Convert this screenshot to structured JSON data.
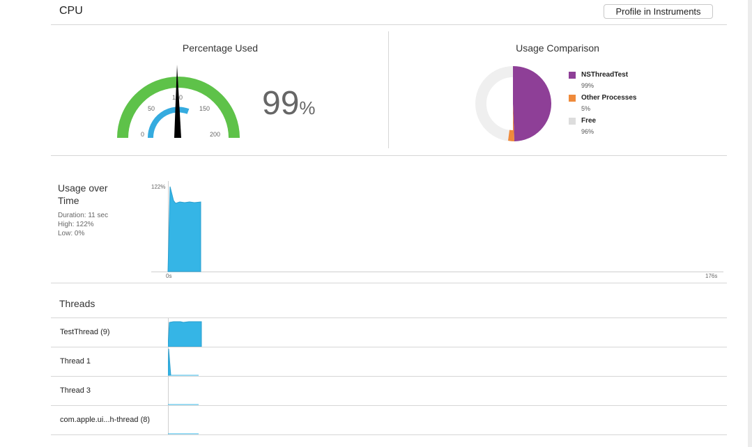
{
  "header": {
    "title": "CPU",
    "profile_button": "Profile in Instruments"
  },
  "gauge": {
    "title": "Percentage Used",
    "ticks": [
      "0",
      "50",
      "100",
      "150",
      "200"
    ],
    "value": "99",
    "unit": "%",
    "value_fraction": 0.495,
    "colors": {
      "outer": "#5ec249",
      "inner": "#35abdf",
      "needle": "#000000"
    }
  },
  "comparison": {
    "title": "Usage Comparison",
    "legend": [
      {
        "name": "NSThreadTest",
        "value": "99%",
        "color": "#8e3f97"
      },
      {
        "name": "Other Processes",
        "value": "5%",
        "color": "#ef8a3b"
      },
      {
        "name": "Free",
        "value": "96%",
        "color": "#dddddd"
      }
    ]
  },
  "usage": {
    "title_line1": "Usage over",
    "title_line2": "Time",
    "duration": "Duration: 11 sec",
    "high": "High: 122%",
    "low": "Low: 0%",
    "y_max_label": "122%",
    "x_start_label": "0s",
    "x_end_label": "176s",
    "fill_color": "#35b5e6"
  },
  "threads": {
    "title": "Threads",
    "items": [
      {
        "label": "TestThread (9)"
      },
      {
        "label": "Thread 1"
      },
      {
        "label": "Thread 3"
      },
      {
        "label": "com.apple.ui...h-thread (8)"
      }
    ]
  }
}
